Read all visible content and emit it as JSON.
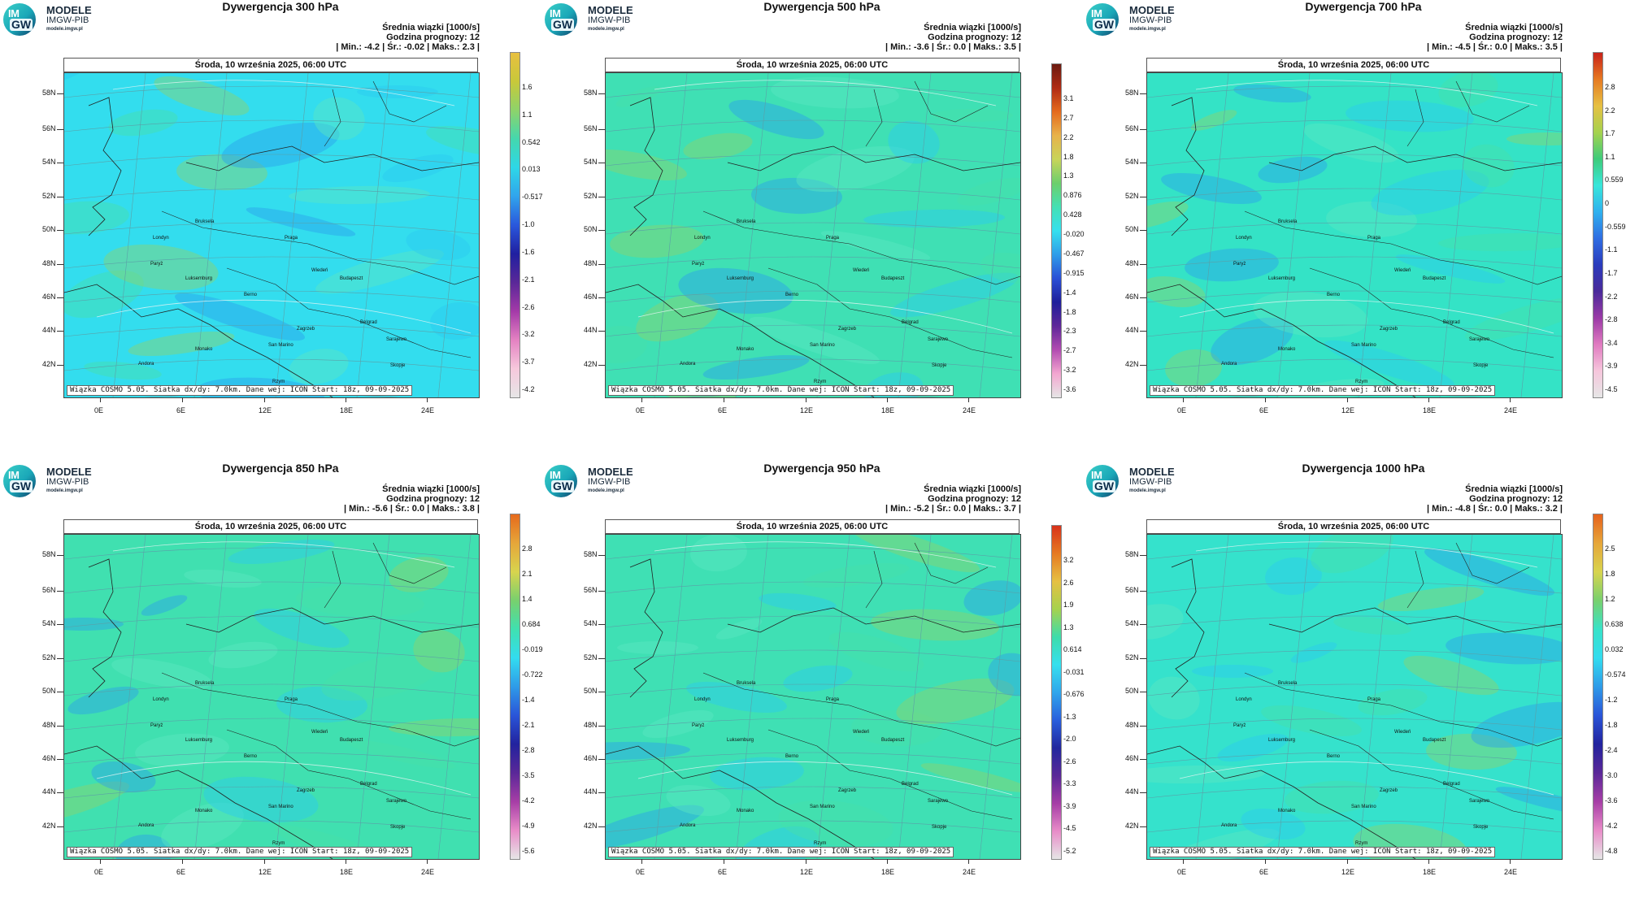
{
  "logo": {
    "line1": "MODELE",
    "line2": "IMGW-PIB",
    "line3": "modele.imgw.pl",
    "im": "IM",
    "gw": "GW"
  },
  "common": {
    "units_label": "Średnia wiązki [1000/s]",
    "forecast_hour": "Godzina prognozy: 12",
    "date": "Środa, 10 września 2025, 06:00 UTC",
    "footer": "Wiązka COSMO 5.05. Siatka dx/dy: 7.0km. Dane wej: ICON Start: 18z, 09-09-2025",
    "lat_labels": [
      "58N",
      "56N",
      "54N",
      "52N",
      "50N",
      "48N",
      "46N",
      "44N",
      "42N"
    ],
    "lon_labels": [
      "0E",
      "6E",
      "12E",
      "18E",
      "24E"
    ],
    "cities": [
      "Londyn",
      "Bruksela",
      "Paryż",
      "Luksemburg",
      "Praga",
      "Berno",
      "Wiedeń",
      "Budapeszt",
      "Zagrzeb",
      "Belgrad",
      "Sarajewo",
      "San Marino",
      "Monako",
      "Andora",
      "Rzym",
      "Skopje"
    ]
  },
  "panels": [
    {
      "title": "Dywergencja 300 hPa",
      "stats": "| Min.: -4.2 | Śr.: -0.02 | Maks.: 2.3 |",
      "cbar_ticks": [
        "1.6",
        "1.1",
        "0.542",
        "0.013",
        "-0.517",
        "-1.0",
        "-1.6",
        "-2.1",
        "-2.6",
        "-3.2",
        "-3.7",
        "-4.2"
      ],
      "base_color": "#33ddee"
    },
    {
      "title": "Dywergencja 500 hPa",
      "stats": "| Min.: -3.6 | Śr.: 0.0 | Maks.: 3.5 |",
      "cbar_ticks": [
        "3.1",
        "2.7",
        "2.2",
        "1.8",
        "1.3",
        "0.876",
        "0.428",
        "-0.020",
        "-0.467",
        "-0.915",
        "-1.4",
        "-1.8",
        "-2.3",
        "-2.7",
        "-3.2",
        "-3.6"
      ],
      "base_color": "#3fe0b4"
    },
    {
      "title": "Dywergencja 700 hPa",
      "stats": "| Min.: -4.5 | Śr.: 0.0 | Maks.: 3.5 |",
      "cbar_ticks": [
        "2.8",
        "2.2",
        "1.7",
        "1.1",
        "0.559",
        "0",
        "-0.559",
        "-1.1",
        "-1.7",
        "-2.2",
        "-2.8",
        "-3.4",
        "-3.9",
        "-4.5"
      ],
      "base_color": "#34e3c6"
    },
    {
      "title": "Dywergencja 850 hPa",
      "stats": "| Min.: -5.6 | Śr.: 0.0 | Maks.: 3.8 |",
      "cbar_ticks": [
        "2.8",
        "2.1",
        "1.4",
        "0.684",
        "-0.019",
        "-0.722",
        "-1.4",
        "-2.1",
        "-2.8",
        "-3.5",
        "-4.2",
        "-4.9",
        "-5.6"
      ],
      "base_color": "#40e0b0"
    },
    {
      "title": "Dywergencja 950 hPa",
      "stats": "| Min.: -5.2 | Śr.: 0.0 | Maks.: 3.7 |",
      "cbar_ticks": [
        "3.2",
        "2.6",
        "1.9",
        "1.3",
        "0.614",
        "-0.031",
        "-0.676",
        "-1.3",
        "-2.0",
        "-2.6",
        "-3.3",
        "-3.9",
        "-4.5",
        "-5.2"
      ],
      "base_color": "#3fe0b4"
    },
    {
      "title": "Dywergencja 1000 hPa",
      "stats": "| Min.: -4.8 | Śr.: 0.0 | Maks.: 3.2 |",
      "cbar_ticks": [
        "2.5",
        "1.8",
        "1.2",
        "0.638",
        "0.032",
        "-0.574",
        "-1.2",
        "-1.8",
        "-2.4",
        "-3.0",
        "-3.6",
        "-4.2",
        "-4.8"
      ],
      "base_color": "#35e2cc"
    }
  ]
}
